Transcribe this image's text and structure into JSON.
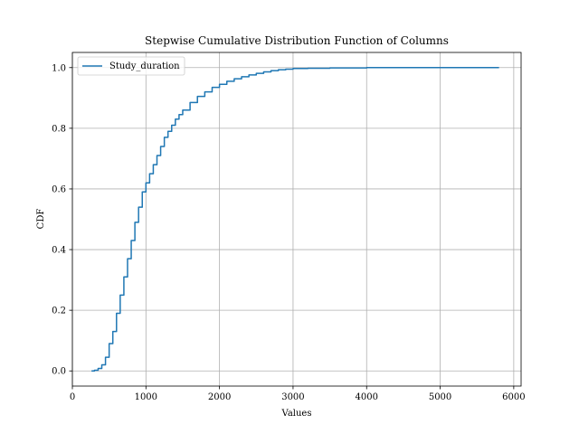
{
  "chart_data": {
    "type": "line",
    "title": "Stepwise Cumulative Distribution Function of Columns",
    "xlabel": "Values",
    "ylabel": "CDF",
    "xlim": [
      0,
      6100
    ],
    "ylim": [
      -0.05,
      1.05
    ],
    "xticks": [
      0,
      1000,
      2000,
      3000,
      4000,
      5000,
      6000
    ],
    "xtick_labels": [
      "0",
      "1000",
      "2000",
      "3000",
      "4000",
      "5000",
      "6000"
    ],
    "yticks": [
      0.0,
      0.2,
      0.4,
      0.6,
      0.8,
      1.0
    ],
    "ytick_labels": [
      "0.0",
      "0.2",
      "0.4",
      "0.6",
      "0.8",
      "1.0"
    ],
    "grid": true,
    "legend_position": "top-left",
    "series": [
      {
        "name": "Study_duration",
        "color": "#1f77b4",
        "x": [
          260,
          300,
          350,
          400,
          450,
          500,
          550,
          600,
          650,
          700,
          750,
          800,
          850,
          900,
          950,
          1000,
          1050,
          1100,
          1150,
          1200,
          1250,
          1300,
          1350,
          1400,
          1450,
          1500,
          1600,
          1700,
          1800,
          1900,
          2000,
          2100,
          2200,
          2300,
          2400,
          2500,
          2600,
          2700,
          2800,
          2900,
          3000,
          3200,
          3500,
          4000,
          5000,
          5800
        ],
        "y": [
          0.0,
          0.002,
          0.008,
          0.02,
          0.045,
          0.09,
          0.13,
          0.19,
          0.25,
          0.31,
          0.37,
          0.43,
          0.49,
          0.54,
          0.59,
          0.62,
          0.65,
          0.68,
          0.71,
          0.74,
          0.77,
          0.79,
          0.81,
          0.83,
          0.845,
          0.86,
          0.885,
          0.905,
          0.92,
          0.935,
          0.945,
          0.955,
          0.963,
          0.97,
          0.976,
          0.981,
          0.986,
          0.99,
          0.993,
          0.995,
          0.997,
          0.998,
          0.999,
          1.0,
          1.0,
          1.0
        ]
      }
    ]
  }
}
